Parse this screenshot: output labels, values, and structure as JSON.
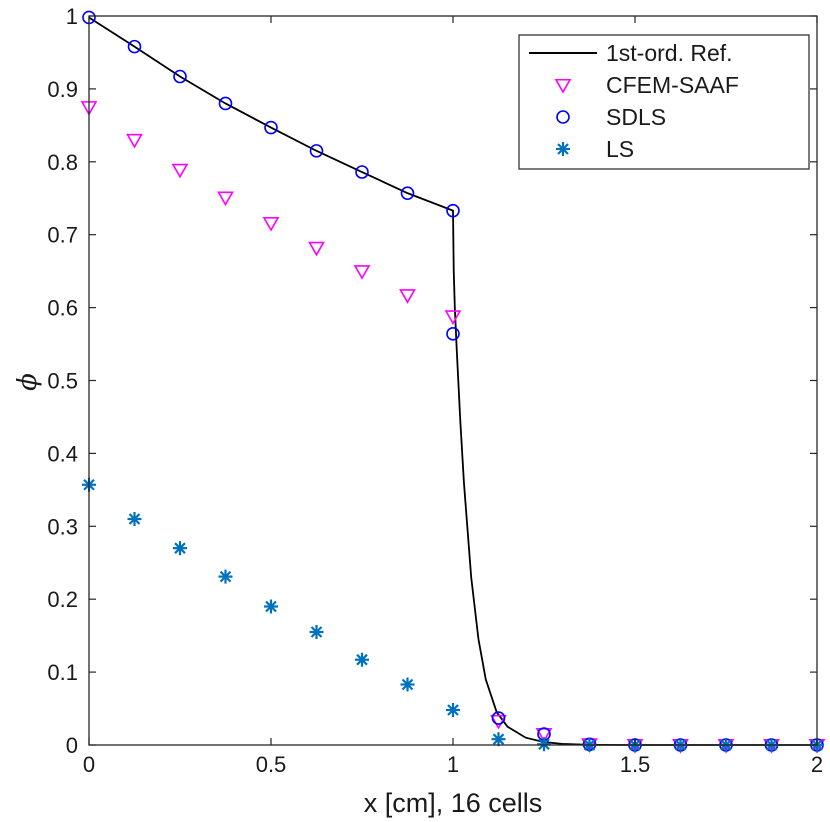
{
  "chart_data": {
    "type": "scatter",
    "title": "",
    "xlabel": "x [cm], 16 cells",
    "ylabel": "ϕ",
    "xlim": [
      0,
      2
    ],
    "ylim": [
      0,
      1
    ],
    "xticks": [
      "0",
      "0.5",
      "1",
      "1.5",
      "2"
    ],
    "yticks": [
      "0",
      "0.1",
      "0.2",
      "0.3",
      "0.4",
      "0.5",
      "0.6",
      "0.7",
      "0.8",
      "0.9",
      "1"
    ],
    "legend_position": "top-right",
    "series": [
      {
        "name": "1st-ord. Ref.",
        "style": "line",
        "color": "#000000",
        "x": [
          0,
          0.125,
          0.25,
          0.375,
          0.5,
          0.625,
          0.75,
          0.875,
          1.0,
          1.002,
          1.005,
          1.01,
          1.02,
          1.03,
          1.05,
          1.07,
          1.09,
          1.12,
          1.15,
          1.2,
          1.25,
          1.3,
          1.35,
          1.4,
          1.5,
          1.6,
          1.8,
          2.0
        ],
        "values": [
          0.998,
          0.958,
          0.917,
          0.88,
          0.847,
          0.815,
          0.786,
          0.757,
          0.733,
          0.65,
          0.6,
          0.545,
          0.445,
          0.36,
          0.23,
          0.145,
          0.09,
          0.045,
          0.025,
          0.01,
          0.004,
          0.0015,
          0.0006,
          0.0002,
          3e-05,
          0,
          0,
          0
        ]
      },
      {
        "name": "CFEM-SAAF",
        "style": "triangle-down",
        "color": "#ff00ff",
        "x": [
          0,
          0.125,
          0.25,
          0.375,
          0.5,
          0.625,
          0.75,
          0.875,
          1.0,
          1.125,
          1.25,
          1.375,
          1.5,
          1.625,
          1.75,
          1.875,
          2.0
        ],
        "values": [
          0.875,
          0.83,
          0.789,
          0.751,
          0.716,
          0.682,
          0.65,
          0.617,
          0.588,
          0.033,
          0.015,
          0.001,
          0,
          0,
          0,
          0,
          0
        ]
      },
      {
        "name": "SDLS",
        "style": "circle",
        "color": "#0000ff",
        "x": [
          0,
          0.125,
          0.25,
          0.375,
          0.5,
          0.625,
          0.75,
          0.875,
          1.0,
          1.0,
          1.125,
          1.25,
          1.375,
          1.5,
          1.625,
          1.75,
          1.875,
          2.0
        ],
        "values": [
          0.998,
          0.958,
          0.917,
          0.88,
          0.847,
          0.815,
          0.786,
          0.757,
          0.733,
          0.564,
          0.037,
          0.015,
          0.001,
          0,
          0,
          0,
          0,
          0
        ]
      },
      {
        "name": "LS",
        "style": "asterisk",
        "color": "#0072bd",
        "x": [
          0,
          0.125,
          0.25,
          0.375,
          0.5,
          0.625,
          0.75,
          0.875,
          1.0,
          1.125,
          1.25,
          1.375,
          1.5,
          1.625,
          1.75,
          1.875,
          2.0
        ],
        "values": [
          0.357,
          0.31,
          0.27,
          0.231,
          0.19,
          0.155,
          0.117,
          0.083,
          0.048,
          0.008,
          0.001,
          0,
          0,
          0,
          0,
          0,
          0
        ]
      }
    ]
  }
}
